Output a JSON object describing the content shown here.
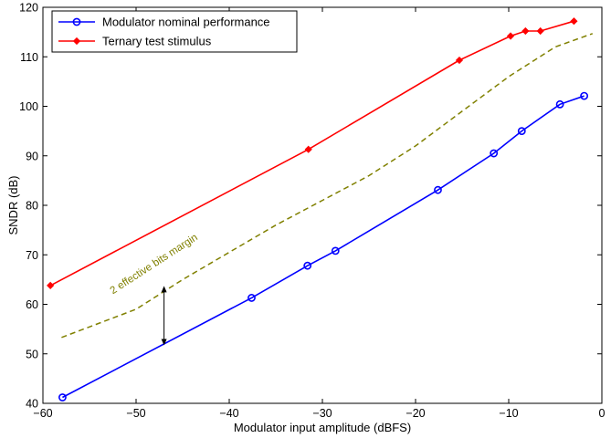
{
  "chart_data": {
    "type": "line",
    "xlabel": "Modulator input amplitude (dBFS)",
    "ylabel": "SNDR (dB)",
    "xlim": [
      -60,
      0
    ],
    "ylim": [
      40,
      120
    ],
    "xticks": [
      -60,
      -50,
      -40,
      -30,
      -20,
      -10,
      0
    ],
    "yticks": [
      40,
      50,
      60,
      70,
      80,
      90,
      100,
      110,
      120
    ],
    "xtick_labels": [
      "−60",
      "−50",
      "−40",
      "−30",
      "−20",
      "−10",
      "0"
    ],
    "ytick_labels": [
      "40",
      "50",
      "60",
      "70",
      "80",
      "90",
      "100",
      "110",
      "120"
    ],
    "grid": false,
    "legend_position": "top-left",
    "series": [
      {
        "name": "Modulator nominal performance",
        "color": "#0000ff",
        "marker": "circle",
        "points": [
          [
            -57.9,
            41.2
          ],
          [
            -37.6,
            61.3
          ],
          [
            -31.6,
            67.8
          ],
          [
            -28.6,
            70.8
          ],
          [
            -17.6,
            83.1
          ],
          [
            -11.6,
            90.5
          ],
          [
            -8.6,
            95.0
          ],
          [
            -4.5,
            100.4
          ],
          [
            -1.9,
            102.1
          ]
        ]
      },
      {
        "name": "Ternary test stimulus",
        "color": "#ff0000",
        "marker": "diamond",
        "points": [
          [
            -59.2,
            63.8
          ],
          [
            -31.5,
            91.3
          ],
          [
            -15.3,
            109.3
          ],
          [
            -9.8,
            114.2
          ],
          [
            -8.2,
            115.2
          ],
          [
            -6.6,
            115.2
          ],
          [
            -3.0,
            117.2
          ]
        ]
      }
    ],
    "reference_line": {
      "color": "#808000",
      "style": "dashed",
      "points": [
        [
          -58,
          53.3
        ],
        [
          -50,
          59
        ],
        [
          -45,
          65
        ],
        [
          -40,
          70.5
        ],
        [
          -35,
          76
        ],
        [
          -30,
          81
        ],
        [
          -25,
          86
        ],
        [
          -20,
          92
        ],
        [
          -15,
          99
        ],
        [
          -10,
          106
        ],
        [
          -5,
          112
        ],
        [
          -1,
          114.7
        ]
      ]
    },
    "annotations": [
      {
        "text": "2 effective bits margin",
        "color": "#808000",
        "x": -52.5,
        "y": 62,
        "rotation": -33
      }
    ],
    "arrow": {
      "x": -47,
      "y_from": 51.7,
      "y_to": 63.7,
      "double_headed": true
    }
  }
}
